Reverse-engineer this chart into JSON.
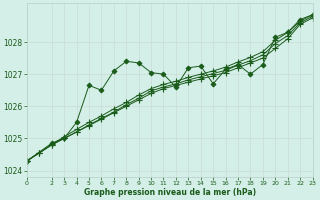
{
  "title": "Graphe pression niveau de la mer (hPa)",
  "background_color": "#d4eee8",
  "grid_color": "#b8cfc8",
  "line_color": "#1a5c1a",
  "xlim": [
    0,
    23
  ],
  "ylim": [
    1023.8,
    1029.2
  ],
  "yticks": [
    1024,
    1025,
    1026,
    1027,
    1028
  ],
  "xticks": [
    0,
    2,
    3,
    4,
    5,
    6,
    7,
    8,
    9,
    10,
    11,
    12,
    13,
    14,
    15,
    16,
    17,
    18,
    19,
    20,
    21,
    22,
    23
  ],
  "series": [
    {
      "x": [
        0,
        1,
        2,
        3,
        4,
        5,
        6,
        7,
        8,
        9,
        10,
        11,
        12,
        13,
        14,
        15,
        16,
        17,
        18,
        19,
        20,
        21,
        22,
        23
      ],
      "y": [
        1024.3,
        1024.55,
        1024.8,
        1025.0,
        1025.2,
        1025.4,
        1025.6,
        1025.8,
        1026.0,
        1026.2,
        1026.4,
        1026.55,
        1026.65,
        1026.75,
        1026.85,
        1026.95,
        1027.05,
        1027.2,
        1027.35,
        1027.5,
        1027.8,
        1028.1,
        1028.55,
        1028.75
      ],
      "marker": "+"
    },
    {
      "x": [
        0,
        1,
        2,
        3,
        4,
        5,
        6,
        7,
        8,
        9,
        10,
        11,
        12,
        13,
        14,
        15,
        16,
        17,
        18,
        19,
        20,
        21,
        22,
        23
      ],
      "y": [
        1024.3,
        1024.55,
        1024.8,
        1025.0,
        1025.2,
        1025.42,
        1025.62,
        1025.82,
        1026.05,
        1026.25,
        1026.48,
        1026.6,
        1026.7,
        1026.82,
        1026.92,
        1027.02,
        1027.12,
        1027.28,
        1027.42,
        1027.6,
        1027.95,
        1028.2,
        1028.6,
        1028.8
      ],
      "marker": "+"
    },
    {
      "x": [
        0,
        1,
        2,
        3,
        4,
        5,
        6,
        7,
        8,
        9,
        10,
        11,
        12,
        13,
        14,
        15,
        16,
        17,
        18,
        19,
        20,
        21,
        22,
        23
      ],
      "y": [
        1024.3,
        1024.55,
        1024.82,
        1025.05,
        1025.28,
        1025.5,
        1025.7,
        1025.92,
        1026.12,
        1026.35,
        1026.55,
        1026.68,
        1026.78,
        1026.9,
        1027.0,
        1027.1,
        1027.22,
        1027.38,
        1027.52,
        1027.7,
        1028.05,
        1028.3,
        1028.65,
        1028.85
      ],
      "marker": "+"
    },
    {
      "x": [
        0,
        2,
        3,
        4,
        5,
        6,
        7,
        8,
        9,
        10,
        11,
        12,
        13,
        14,
        15,
        16,
        17,
        18,
        19,
        20,
        21,
        22,
        23
      ],
      "y": [
        1024.3,
        1024.85,
        1025.0,
        1025.5,
        1026.65,
        1026.5,
        1027.1,
        1027.4,
        1027.35,
        1027.05,
        1027.0,
        1026.6,
        1027.2,
        1027.25,
        1026.7,
        1027.15,
        1027.3,
        1027.0,
        1027.3,
        1028.15,
        1028.3,
        1028.7,
        1028.85
      ],
      "marker": "D"
    }
  ]
}
